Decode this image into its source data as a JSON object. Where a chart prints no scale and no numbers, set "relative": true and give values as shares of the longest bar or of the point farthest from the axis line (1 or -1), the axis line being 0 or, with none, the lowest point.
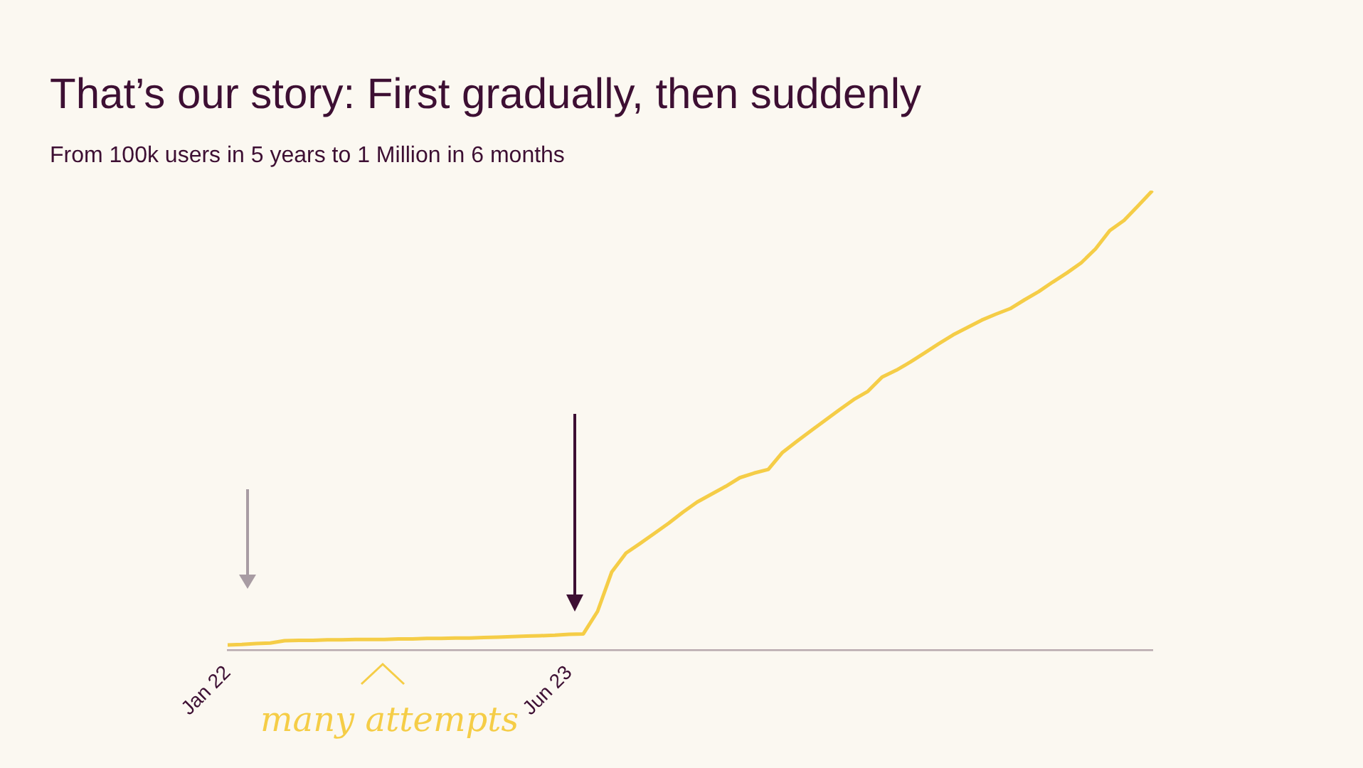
{
  "chart_data": {
    "type": "line",
    "title": "That’s our story: First gradually, then suddenly",
    "subtitle": "From 100k users in 5 years to 1 Million in 6 months",
    "relative": true,
    "categories": [
      "Jan 22",
      null,
      null,
      null,
      null,
      null,
      null,
      null,
      null,
      null,
      null,
      null,
      null,
      null,
      null,
      null,
      null,
      null,
      null,
      null,
      null,
      null,
      null,
      null,
      "Jun 23",
      null,
      null,
      null,
      null,
      null,
      null,
      null,
      null,
      null,
      null,
      null,
      null,
      null,
      null,
      null,
      null,
      null,
      null,
      null,
      null,
      null,
      null,
      null,
      null,
      null,
      null,
      null,
      null,
      null,
      null,
      null,
      null,
      null,
      null,
      null,
      null,
      null,
      null,
      null,
      null,
      null
    ],
    "series": [
      {
        "color": "#f5cd47",
        "values": [
          0.011,
          0.012,
          0.014,
          0.015,
          0.02,
          0.021,
          0.021,
          0.022,
          0.022,
          0.023,
          0.023,
          0.023,
          0.024,
          0.024,
          0.025,
          0.025,
          0.026,
          0.026,
          0.027,
          0.028,
          0.029,
          0.03,
          0.031,
          0.032,
          0.034,
          0.035,
          0.084,
          0.17,
          0.211,
          0.232,
          0.254,
          0.276,
          0.3,
          0.322,
          0.339,
          0.356,
          0.375,
          0.385,
          0.393,
          0.43,
          0.454,
          0.477,
          0.5,
          0.523,
          0.545,
          0.563,
          0.594,
          0.609,
          0.627,
          0.647,
          0.667,
          0.686,
          0.702,
          0.718,
          0.731,
          0.743,
          0.762,
          0.78,
          0.801,
          0.821,
          0.843,
          0.873,
          0.913,
          0.935,
          0.967,
          1.0
        ]
      }
    ],
    "annotations": [
      "many attempts"
    ],
    "grid": false,
    "legend": false,
    "marker": "none"
  }
}
